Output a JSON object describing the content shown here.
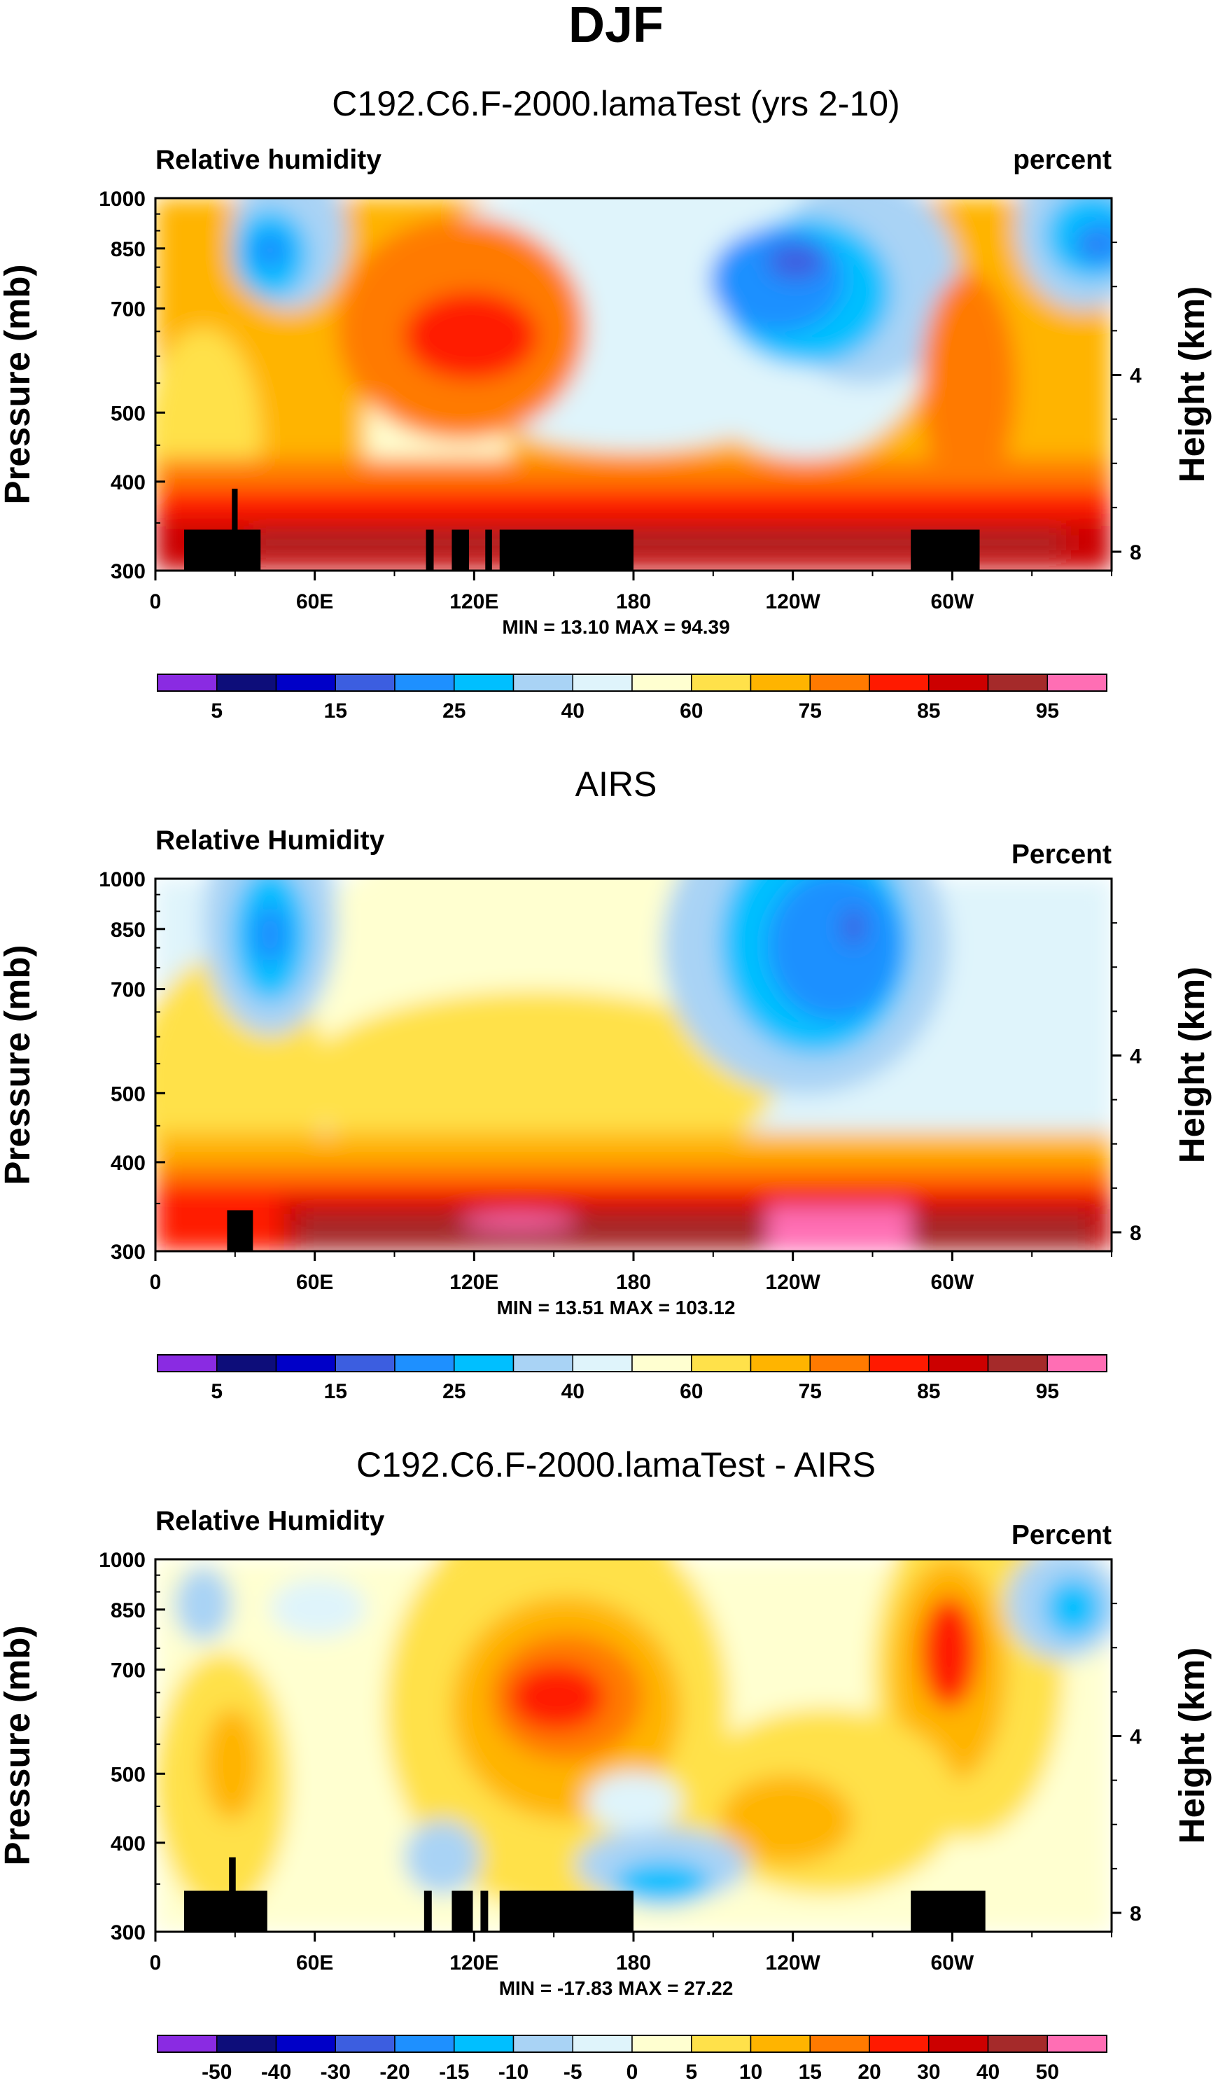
{
  "chart_data": {
    "title": "DJF",
    "panels": [
      {
        "type": "heatmap",
        "title": "C192.C6.F-2000.lamaTest (yrs 2-10)",
        "left_label": "Relative humidity",
        "right_label": "percent",
        "ylabel": "Pressure (mb)",
        "ylabel_right": "Height (km)",
        "x_ticks": [
          "0",
          "60E",
          "120E",
          "180",
          "120W",
          "60W"
        ],
        "x_tick_lon": [
          0,
          60,
          120,
          180,
          240,
          300
        ],
        "xlim": [
          0,
          360
        ],
        "y_ticks": [
          "300",
          "400",
          "500",
          "700",
          "850",
          "1000"
        ],
        "y_tick_values": [
          300,
          400,
          500,
          700,
          850,
          1000
        ],
        "ylim": [
          1000,
          300
        ],
        "y_ticks_right": [
          "8",
          "4"
        ],
        "y_tick_right_km": [
          8,
          4
        ],
        "minmax_label": "MIN =  13.10   MAX =  94.39",
        "colorbar_labels": [
          "5",
          "15",
          "25",
          "40",
          "60",
          "75",
          "85",
          "95"
        ],
        "colorbar_colors": [
          "#8a2be2",
          "#0d0d7a",
          "#0000c8",
          "#3c5ee0",
          "#1e90ff",
          "#00bfff",
          "#a9d3f5",
          "#dff4fb",
          "#ffffd0",
          "#ffe14a",
          "#ffb400",
          "#ff7a00",
          "#ff1a00",
          "#cc0000",
          "#a52a2a",
          "#ff6eb4"
        ]
      },
      {
        "type": "heatmap",
        "title": "AIRS",
        "left_label": "Relative Humidity",
        "right_label": "Percent",
        "ylabel": "Pressure (mb)",
        "ylabel_right": "Height (km)",
        "x_ticks": [
          "0",
          "60E",
          "120E",
          "180",
          "120W",
          "60W"
        ],
        "x_tick_lon": [
          0,
          60,
          120,
          180,
          240,
          300
        ],
        "xlim": [
          0,
          360
        ],
        "y_ticks": [
          "300",
          "400",
          "500",
          "700",
          "850",
          "1000"
        ],
        "y_tick_values": [
          300,
          400,
          500,
          700,
          850,
          1000
        ],
        "ylim": [
          1000,
          300
        ],
        "y_ticks_right": [
          "8",
          "4"
        ],
        "y_tick_right_km": [
          8,
          4
        ],
        "minmax_label": "MIN =  13.51   MAX = 103.12",
        "colorbar_labels": [
          "5",
          "15",
          "25",
          "40",
          "60",
          "75",
          "85",
          "95"
        ],
        "colorbar_colors": [
          "#8a2be2",
          "#0d0d7a",
          "#0000c8",
          "#3c5ee0",
          "#1e90ff",
          "#00bfff",
          "#a9d3f5",
          "#dff4fb",
          "#ffffd0",
          "#ffe14a",
          "#ffb400",
          "#ff7a00",
          "#ff1a00",
          "#cc0000",
          "#a52a2a",
          "#ff6eb4"
        ]
      },
      {
        "type": "heatmap",
        "title": "C192.C6.F-2000.lamaTest - AIRS",
        "left_label": "Relative Humidity",
        "right_label": "Percent",
        "ylabel": "Pressure (mb)",
        "ylabel_right": "Height (km)",
        "x_ticks": [
          "0",
          "60E",
          "120E",
          "180",
          "120W",
          "60W"
        ],
        "x_tick_lon": [
          0,
          60,
          120,
          180,
          240,
          300
        ],
        "xlim": [
          0,
          360
        ],
        "y_ticks": [
          "300",
          "400",
          "500",
          "700",
          "850",
          "1000"
        ],
        "y_tick_values": [
          300,
          400,
          500,
          700,
          850,
          1000
        ],
        "ylim": [
          1000,
          300
        ],
        "y_ticks_right": [
          "8",
          "4"
        ],
        "y_tick_right_km": [
          8,
          4
        ],
        "minmax_label": "MIN = -17.83   MAX =  27.22",
        "colorbar_labels": [
          "-50",
          "-40",
          "-30",
          "-20",
          "-15",
          "-10",
          "-5",
          "0",
          "5",
          "10",
          "15",
          "20",
          "30",
          "40",
          "50"
        ],
        "colorbar_colors": [
          "#8a2be2",
          "#0d0d7a",
          "#0000c8",
          "#3c5ee0",
          "#1e90ff",
          "#00bfff",
          "#a9d3f5",
          "#dff4fb",
          "#ffffd0",
          "#ffe14a",
          "#ffb400",
          "#ff7a00",
          "#ff1a00",
          "#cc0000",
          "#a52a2a",
          "#ff6eb4"
        ]
      }
    ]
  }
}
